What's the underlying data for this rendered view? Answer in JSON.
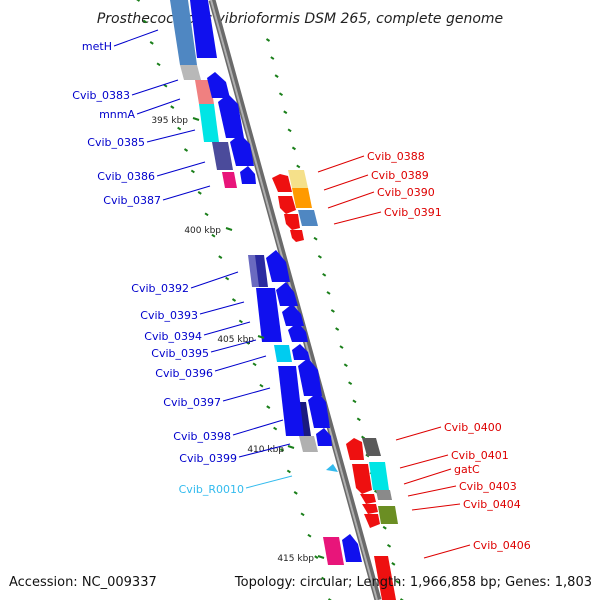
{
  "title": "Prosthecochloris vibrioformis DSM 265, complete genome",
  "accession": "Accession: NC_009337",
  "summary": "Topology: circular; Length: 1,966,858 bp; Genes: 1,803",
  "colors": {
    "forward_label": "#0000cc",
    "reverse_label": "#dd0000",
    "rna_label": "#33bbee",
    "backbone": "#888888",
    "ticks": "#1a7f1a"
  },
  "ticks": [
    {
      "kbp": 395,
      "label": "395 kbp"
    },
    {
      "kbp": 400,
      "label": "400 kbp"
    },
    {
      "kbp": 405,
      "label": "405 kbp"
    },
    {
      "kbp": 410,
      "label": "410 kbp"
    },
    {
      "kbp": 415,
      "label": "415 kbp"
    }
  ],
  "forward_labels": [
    "metH",
    "Cvib_0383",
    "mnmA",
    "Cvib_0385",
    "Cvib_0386",
    "Cvib_0387",
    "Cvib_0392",
    "Cvib_0393",
    "Cvib_0394",
    "Cvib_0395",
    "Cvib_0396",
    "Cvib_0397",
    "Cvib_0398",
    "Cvib_0399"
  ],
  "reverse_labels": [
    "Cvib_0388",
    "Cvib_0389",
    "Cvib_0390",
    "Cvib_0391",
    "Cvib_0400",
    "Cvib_0401",
    "gatC",
    "Cvib_0403",
    "Cvib_0404",
    "Cvib_0406"
  ],
  "rna_labels": [
    "Cvib_R0010"
  ]
}
